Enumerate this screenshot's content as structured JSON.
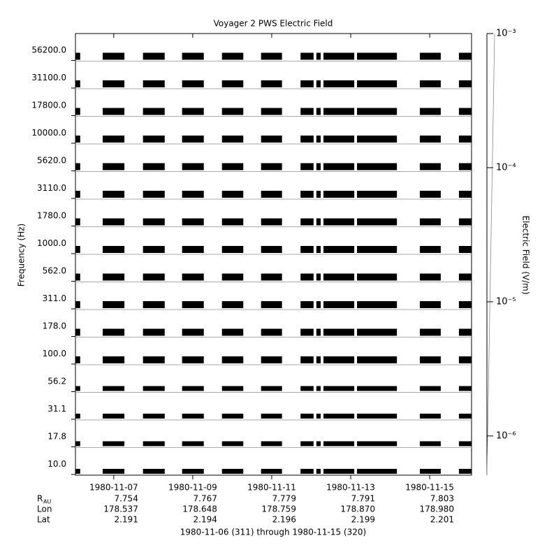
{
  "chart_data": {
    "type": "channel-timeline",
    "title": "Voyager 2 PWS Electric Field",
    "y_label": "Frequency (Hz)",
    "y2_label": "Electric Field (V/m)",
    "x_label": "1980-11-06 (311) through 1980-11-15 (320)",
    "categories": [
      "56200.0",
      "31100.0",
      "17800.0",
      "10000.0",
      "5620.0",
      "3110.0",
      "1780.0",
      "1000.0",
      "562.0",
      "311.0",
      "178.0",
      "100.0",
      "56.2",
      "31.1",
      "17.8",
      "10.0"
    ],
    "xlim": [
      6.03,
      16.06
    ],
    "xticks": [
      {
        "value": 7,
        "label": "1980-11-07"
      },
      {
        "value": 9,
        "label": "1980-11-09"
      },
      {
        "value": 11,
        "label": "1980-11-11"
      },
      {
        "value": 13,
        "label": "1980-11-13"
      },
      {
        "value": 15,
        "label": "1980-11-15"
      }
    ],
    "intervals": [
      [
        6.03,
        6.15
      ],
      [
        6.72,
        7.27
      ],
      [
        7.74,
        8.29
      ],
      [
        8.73,
        9.28
      ],
      [
        9.74,
        10.28
      ],
      [
        10.73,
        11.26
      ],
      [
        11.73,
        12.06
      ],
      [
        12.13,
        12.24
      ],
      [
        12.31,
        13.09
      ],
      [
        13.16,
        14.17
      ],
      [
        14.75,
        15.28
      ],
      [
        15.74,
        16.06
      ]
    ],
    "color": "#000000",
    "y2_scale": "log",
    "y2lim": [
      5.1e-07,
      0.001
    ],
    "y2ticks": [
      {
        "value": 0.001,
        "label": "10⁻³"
      },
      {
        "value": 0.0001,
        "label": "10⁻⁴"
      },
      {
        "value": 1e-05,
        "label": "10⁻⁵"
      },
      {
        "value": 1e-06,
        "label": "10⁻⁶"
      }
    ],
    "ephemeris": [
      {
        "label": "R",
        "label_sub": "AU",
        "values": [
          "7.754",
          "7.767",
          "7.779",
          "7.791",
          "7.803"
        ]
      },
      {
        "label": "Lon",
        "values": [
          "178.537",
          "178.648",
          "178.759",
          "178.870",
          "178.980"
        ]
      },
      {
        "label": "Lat",
        "values": [
          "2.191",
          "2.194",
          "2.196",
          "2.199",
          "2.201"
        ]
      }
    ]
  }
}
